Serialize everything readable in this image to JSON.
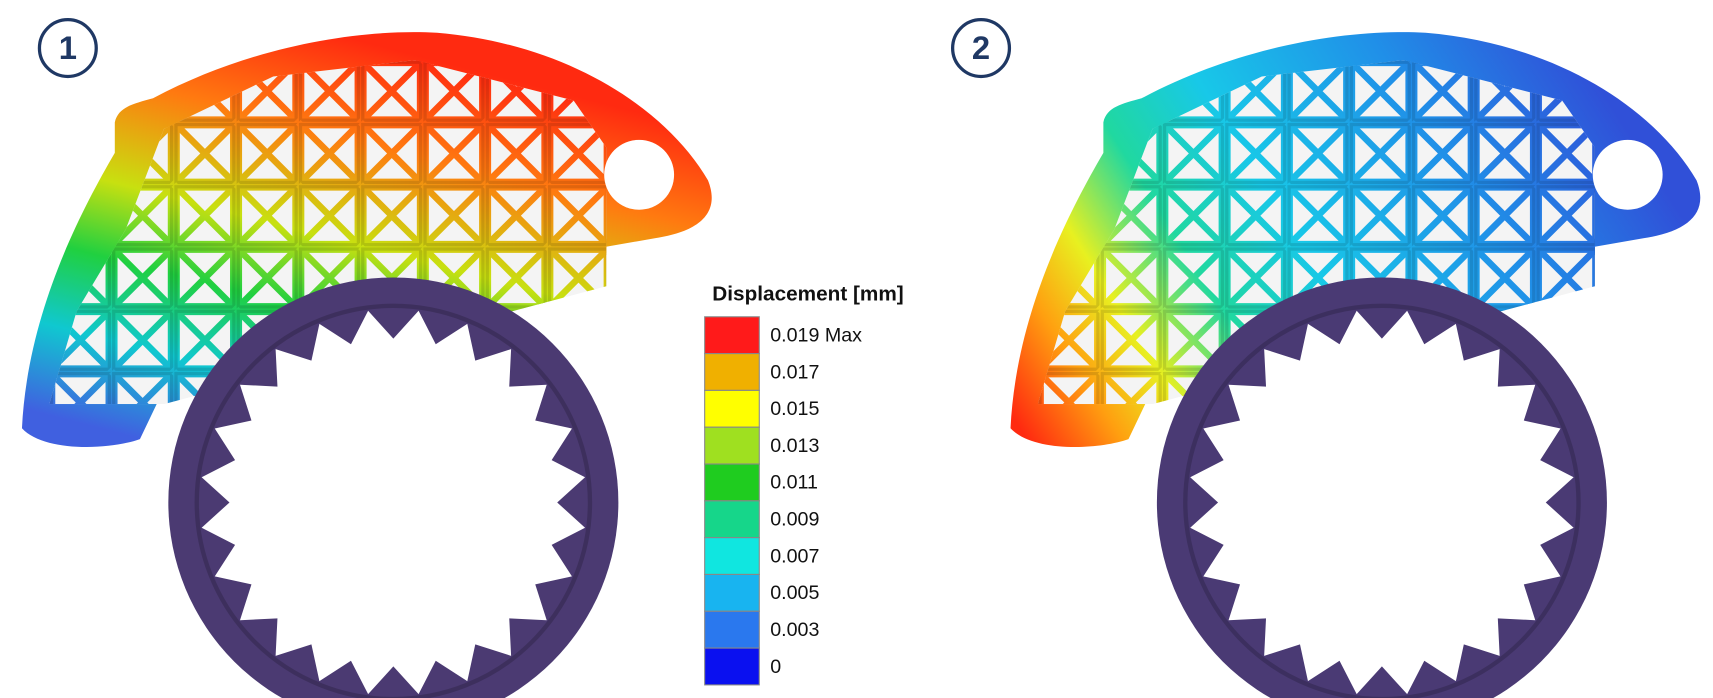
{
  "panels": [
    {
      "badge": "1"
    },
    {
      "badge": "2"
    }
  ],
  "legend": {
    "title": "Displacement [mm]",
    "items": [
      {
        "label": "0.019 Max",
        "color": "#ff1a1a"
      },
      {
        "label": "0.017",
        "color": "#f0b000"
      },
      {
        "label": "0.015",
        "color": "#ffff00"
      },
      {
        "label": "0.013",
        "color": "#9fe020"
      },
      {
        "label": "0.011",
        "color": "#1fcc1f"
      },
      {
        "label": "0.009",
        "color": "#16d68a"
      },
      {
        "label": "0.007",
        "color": "#10e6e0"
      },
      {
        "label": "0.005",
        "color": "#18b4f0"
      },
      {
        "label": "0.003",
        "color": "#2a78ee"
      },
      {
        "label": "0",
        "color": "#0a10f0"
      }
    ]
  }
}
